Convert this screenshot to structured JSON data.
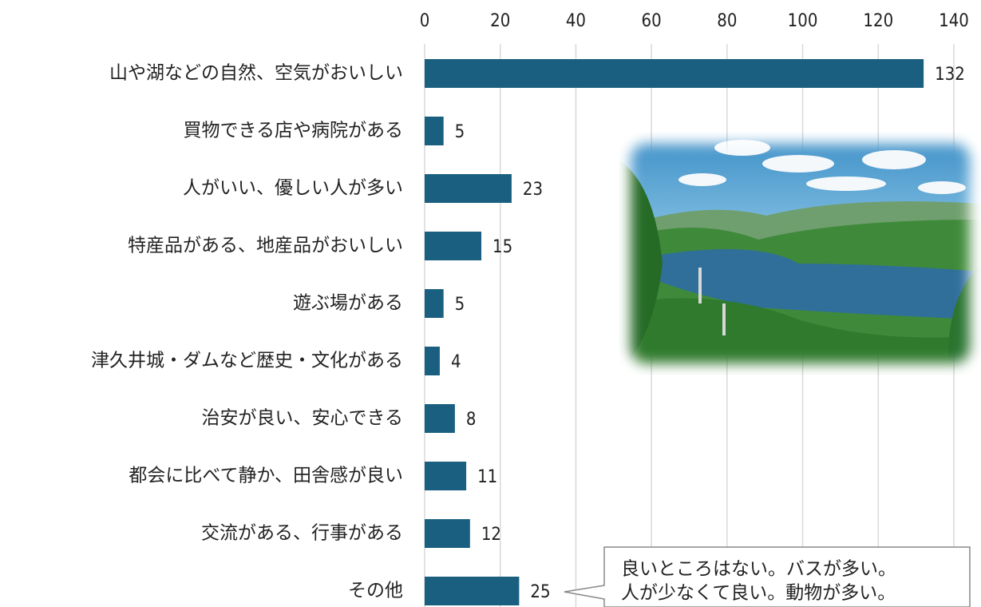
{
  "chart_data": {
    "type": "bar",
    "orientation": "horizontal",
    "categories": [
      "山や湖などの自然、空気がおいしい",
      "買物できる店や病院がある",
      "人がいい、優しい人が多い",
      "特産品がある、地産品がおいしい",
      "遊ぶ場がある",
      "津久井城・ダムなど歴史・文化がある",
      "治安が良い、安心できる",
      "都会に比べて静か、田舎感が良い",
      "交流がある、行事がある",
      "その他"
    ],
    "values": [
      132,
      5,
      23,
      15,
      5,
      4,
      8,
      11,
      12,
      25
    ],
    "color": "#1a5f80",
    "xlim": [
      0,
      140
    ],
    "xticks": [
      0,
      20,
      40,
      60,
      80,
      100,
      120,
      140
    ],
    "grid": true,
    "annotations": [
      "良いところはない。バスが多い。",
      "人が少なくて良い。動物が多い。"
    ]
  }
}
